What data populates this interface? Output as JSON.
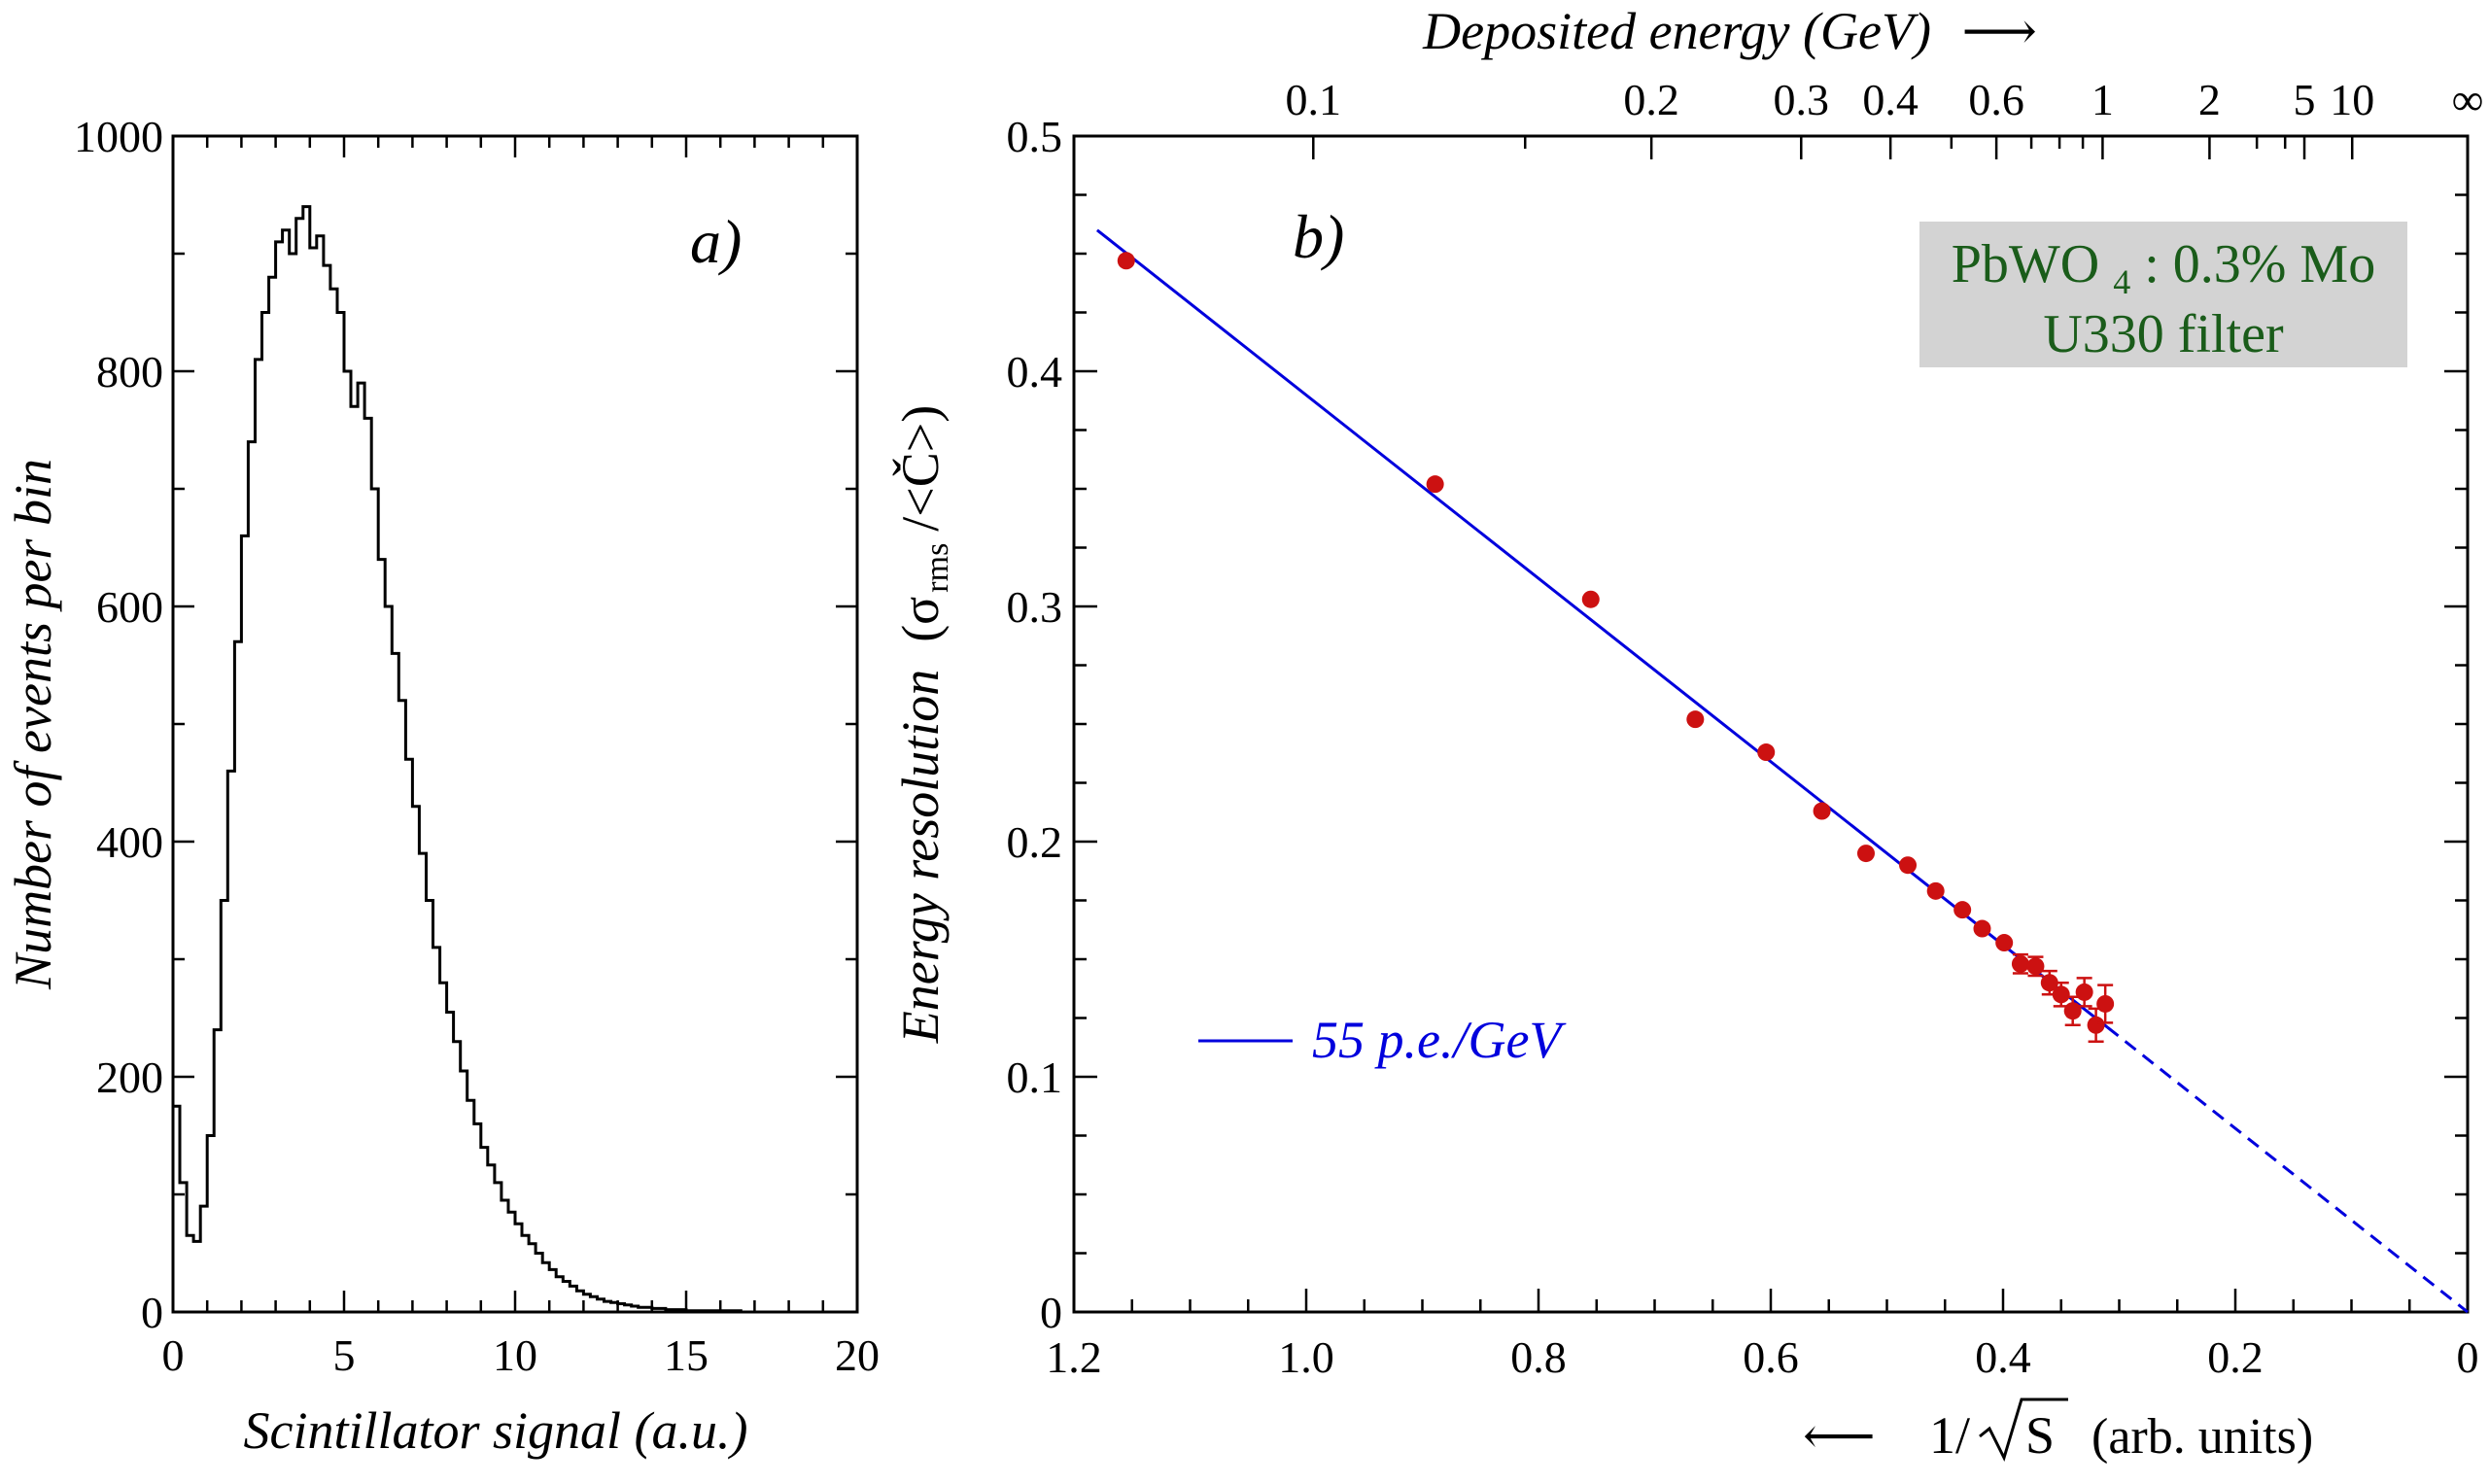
{
  "chart_data": [
    {
      "type": "line",
      "subtype": "histogram",
      "panel_label": "a)",
      "xlabel": "Scintillator signal (a.u.)",
      "ylabel": "Number of events per bin",
      "xlim": [
        0,
        20
      ],
      "ylim": [
        0,
        1000
      ],
      "x_ticks": [
        0,
        5,
        10,
        15,
        20
      ],
      "y_ticks": [
        0,
        200,
        400,
        600,
        800,
        1000
      ],
      "bin_width": 0.2,
      "x": [
        0.0,
        0.2,
        0.4,
        0.6,
        0.8,
        1.0,
        1.2,
        1.4,
        1.6,
        1.8,
        2.0,
        2.2,
        2.4,
        2.6,
        2.8,
        3.0,
        3.2,
        3.4,
        3.6,
        3.8,
        4.0,
        4.2,
        4.4,
        4.6,
        4.8,
        5.0,
        5.2,
        5.4,
        5.6,
        5.8,
        6.0,
        6.2,
        6.4,
        6.6,
        6.8,
        7.0,
        7.2,
        7.4,
        7.6,
        7.8,
        8.0,
        8.2,
        8.4,
        8.6,
        8.8,
        9.0,
        9.2,
        9.4,
        9.6,
        9.8,
        10.0,
        10.2,
        10.4,
        10.6,
        10.8,
        11.0,
        11.2,
        11.4,
        11.6,
        11.8,
        12.0,
        12.2,
        12.4,
        12.6,
        12.8,
        13.0,
        13.2,
        13.4,
        13.6,
        13.8,
        14.0,
        14.2,
        14.4,
        14.6,
        14.8,
        15.0,
        15.4,
        15.8,
        16.2,
        16.6,
        17.0,
        17.4,
        17.8,
        18.2,
        18.6,
        19.0,
        19.4
      ],
      "values": [
        175,
        110,
        65,
        60,
        90,
        150,
        240,
        350,
        460,
        570,
        660,
        740,
        810,
        850,
        880,
        910,
        920,
        900,
        930,
        940,
        905,
        915,
        890,
        870,
        850,
        800,
        770,
        790,
        760,
        700,
        640,
        600,
        560,
        520,
        470,
        430,
        390,
        350,
        310,
        280,
        255,
        230,
        205,
        180,
        160,
        140,
        125,
        110,
        95,
        85,
        75,
        65,
        58,
        50,
        42,
        36,
        30,
        26,
        22,
        18,
        15,
        13,
        11,
        9,
        8,
        7,
        6,
        5,
        4,
        4,
        3,
        3,
        2,
        2,
        2,
        1,
        1,
        1,
        1,
        0,
        0,
        0,
        0,
        0,
        0,
        0,
        0
      ],
      "grid": false,
      "legend": "none"
    },
    {
      "type": "scatter",
      "panel_label": "b)",
      "xlabel": "1/√S  (arb. units)",
      "xlabel_parts": {
        "arrow": "⟵",
        "main": "1/",
        "radical": "S",
        "suffix": "(arb. units)"
      },
      "ylabel_parts": {
        "main": "Energy resolution",
        "open": "(σ",
        "sub": "rms",
        "close": "/<Č>)"
      },
      "xlim": [
        1.2,
        0
      ],
      "ylim": [
        0,
        0.5
      ],
      "x_ticks": [
        "1.2",
        "1.0",
        "0.8",
        "0.6",
        "0.4",
        "0.2",
        "0"
      ],
      "x_tick_values": [
        1.2,
        1.0,
        0.8,
        0.6,
        0.4,
        0.2,
        0
      ],
      "y_ticks": [
        "0",
        "0.1",
        "0.2",
        "0.3",
        "0.4",
        "0.5"
      ],
      "y_tick_values": [
        0,
        0.1,
        0.2,
        0.3,
        0.4,
        0.5
      ],
      "top_axis": {
        "label": "Deposited energy (GeV) ⟶",
        "label_main": "Deposited energy (GeV)",
        "label_arrow": "⟶",
        "ticks": [
          "0.1",
          "0.2",
          "0.3",
          "0.4",
          "0.6",
          "1",
          "2",
          "5",
          "10",
          "∞"
        ],
        "tick_values": [
          0.1,
          0.2,
          0.3,
          0.4,
          0.6,
          1,
          2,
          5,
          10,
          1000000000.0
        ],
        "transform": "x = 1.2 * sqrt(0.0686 / E)"
      },
      "series": [
        {
          "name": "data",
          "kind": "points",
          "color": "#cc1111",
          "x": [
            1.155,
            0.889,
            0.755,
            0.665,
            0.604,
            0.556,
            0.518,
            0.482,
            0.458,
            0.435,
            0.418,
            0.399,
            0.385,
            0.372,
            0.36,
            0.35,
            0.34,
            0.33,
            0.32,
            0.312
          ],
          "y": [
            0.447,
            0.352,
            0.303,
            0.252,
            0.238,
            0.213,
            0.195,
            0.19,
            0.179,
            0.171,
            0.163,
            0.157,
            0.148,
            0.147,
            0.14,
            0.135,
            0.128,
            0.136,
            0.122,
            0.131
          ],
          "yerr": [
            0.002,
            0.002,
            0.002,
            0.002,
            0.002,
            0.002,
            0.002,
            0.002,
            0.003,
            0.003,
            0.003,
            0.003,
            0.004,
            0.004,
            0.005,
            0.005,
            0.006,
            0.006,
            0.007,
            0.008
          ]
        },
        {
          "name": "55 p.e./GeV",
          "kind": "fit-line",
          "color": "#0000dd",
          "x": [
            1.18,
            0.31
          ],
          "y": [
            0.46,
            0.121
          ]
        },
        {
          "name": "extrapolation",
          "kind": "dashed-line",
          "color": "#0000dd",
          "x": [
            0.31,
            0.0
          ],
          "y": [
            0.121,
            0.0
          ]
        }
      ],
      "legend": {
        "position": "bottom-left",
        "entries": [
          "55 p.e./GeV"
        ]
      },
      "annotation": {
        "line1_pre": "PbWO",
        "line1_sub": "4",
        "line1_post": ": 0.3% Mo",
        "line2": "U330 filter",
        "color": "#1a5c1a",
        "background": "#d3d3d3"
      },
      "grid": false
    }
  ]
}
